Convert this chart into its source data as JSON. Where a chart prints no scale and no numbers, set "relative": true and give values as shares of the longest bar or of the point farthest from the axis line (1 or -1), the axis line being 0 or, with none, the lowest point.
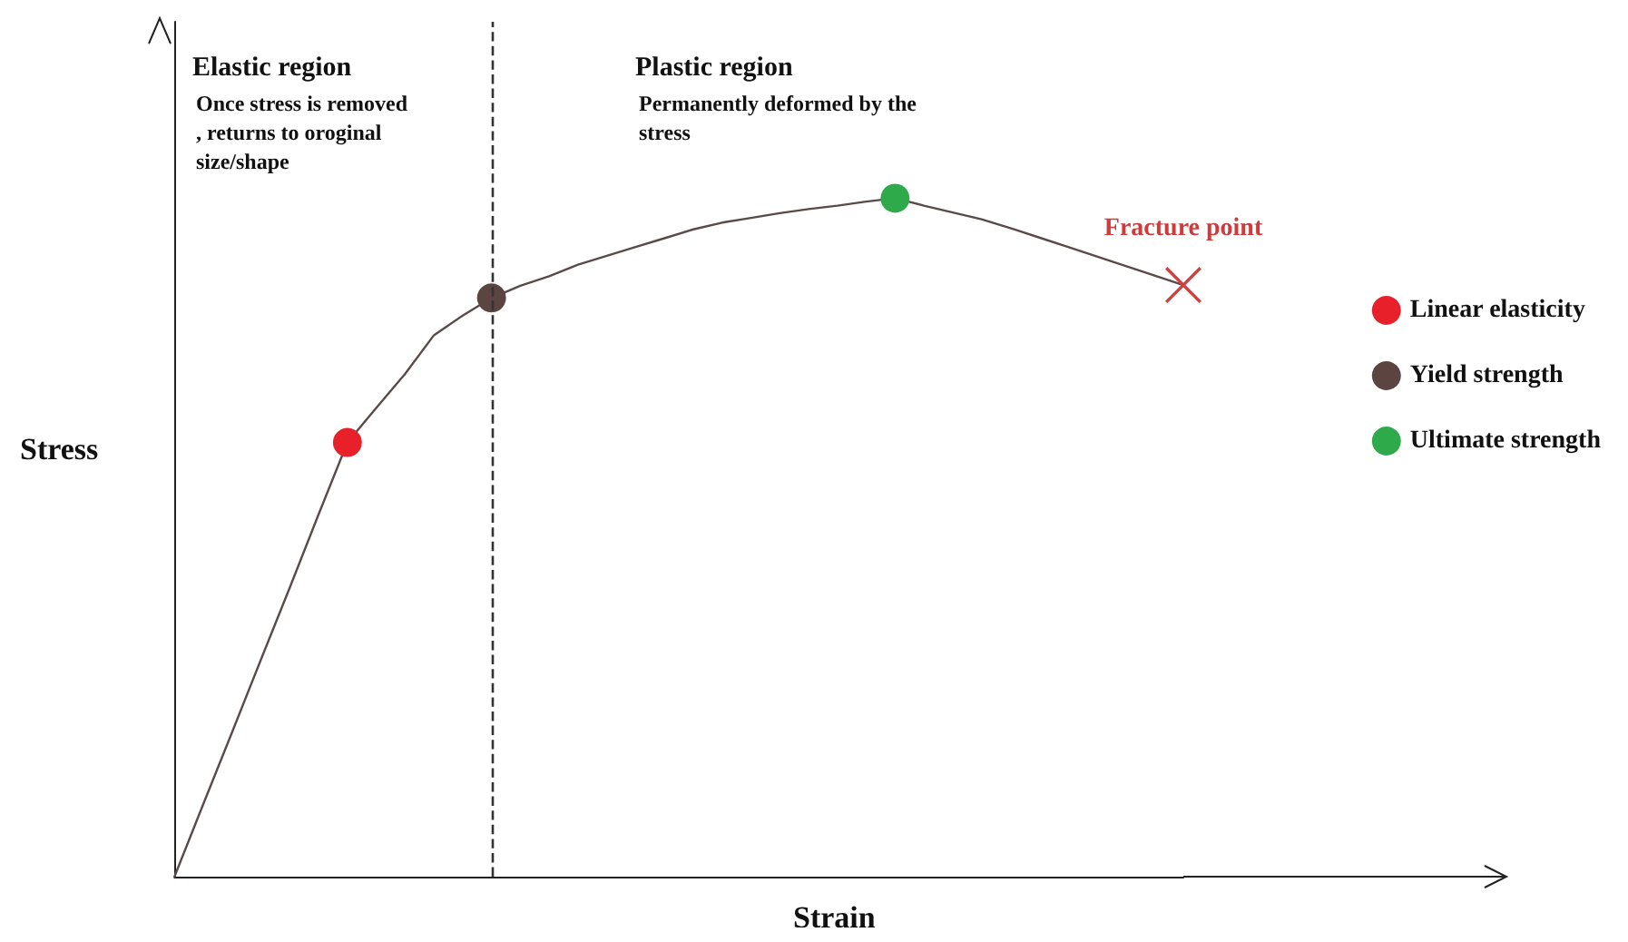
{
  "chart_data": {
    "type": "line",
    "relative": true,
    "xlabel": "Strain",
    "ylabel": "Stress",
    "legend": "right",
    "line_style": "solid",
    "categories": [
      null,
      null,
      null,
      null,
      null,
      null,
      null,
      null,
      null,
      null,
      null,
      null,
      null,
      null,
      null,
      null,
      null,
      null,
      null,
      null,
      null,
      null,
      null,
      null,
      null,
      null,
      null,
      null,
      null,
      null,
      null,
      null,
      null,
      null,
      null,
      null
    ],
    "series": [
      {
        "color": "#5a4a4a",
        "marker": "none",
        "values": [
          0,
          0.107,
          0.213,
          0.32,
          0.426,
          0.534,
          0.64,
          0.691,
          0.741,
          0.798,
          0.827,
          0.853,
          0.871,
          0.885,
          0.902,
          0.915,
          0.928,
          0.941,
          0.954,
          0.964,
          0.971,
          0.978,
          0.984,
          0.989,
          0.995,
          1,
          0.989,
          0.979,
          0.969,
          0.956,
          0.942,
          0.928,
          0.914,
          0.9,
          0.886,
          0.872
        ]
      },
      {
        "name": "Linear elasticity",
        "color": "#e8202a",
        "marker": "circle",
        "values": [
          null,
          null,
          null,
          null,
          null,
          null,
          0.64,
          null,
          null,
          null,
          null,
          null,
          null,
          null,
          null,
          null,
          null,
          null,
          null,
          null,
          null,
          null,
          null,
          null,
          null,
          null,
          null,
          null,
          null,
          null,
          null,
          null,
          null,
          null,
          null,
          null
        ]
      },
      {
        "name": "Yield strength",
        "color": "#5c4540",
        "marker": "circle",
        "values": [
          null,
          null,
          null,
          null,
          null,
          null,
          null,
          null,
          null,
          null,
          null,
          0.853,
          null,
          null,
          null,
          null,
          null,
          null,
          null,
          null,
          null,
          null,
          null,
          null,
          null,
          null,
          null,
          null,
          null,
          null,
          null,
          null,
          null,
          null,
          null,
          null
        ]
      },
      {
        "name": "Ultimate strength",
        "color": "#2eaa4a",
        "marker": "circle",
        "values": [
          null,
          null,
          null,
          null,
          null,
          null,
          null,
          null,
          null,
          null,
          null,
          null,
          null,
          null,
          null,
          null,
          null,
          null,
          null,
          null,
          null,
          null,
          null,
          null,
          null,
          1,
          null,
          null,
          null,
          null,
          null,
          null,
          null,
          null,
          null,
          null
        ]
      }
    ],
    "annotations": [
      "Elastic region",
      "Once stress is removed, returns to oroginal size/shape",
      "Plastic region",
      "Permanently deformed by the stress",
      "Fracture point"
    ]
  }
}
